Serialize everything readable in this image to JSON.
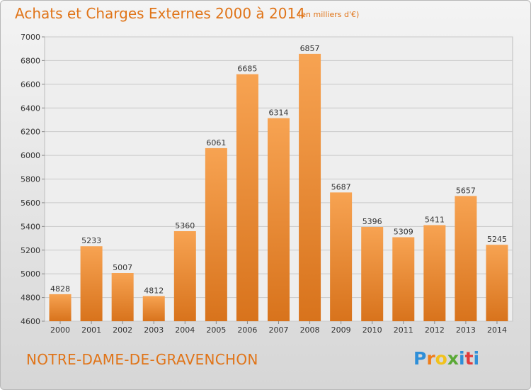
{
  "title": "Achats et Charges Externes 2000 à 2014",
  "subtitle": "(en milliers d'€)",
  "location": "NOTRE-DAME-DE-GRAVENCHON",
  "logo": {
    "letters": [
      "P",
      "r",
      "o",
      "x",
      "i",
      "t",
      "i"
    ],
    "colors": [
      "#2f8fd8",
      "#ee7d1a",
      "#f2c21b",
      "#5aa935",
      "#2f8fd8",
      "#e23b3b",
      "#2f8fd8"
    ]
  },
  "colors": {
    "bar_light": "#f7a352",
    "bar_dark": "#d8731c",
    "grid": "#c9c9c9",
    "text": "#333333"
  },
  "chart_data": {
    "type": "bar",
    "title": "Achats et Charges Externes 2000 à 2014",
    "subtitle": "(en milliers d'€)",
    "categories": [
      "2000",
      "2001",
      "2002",
      "2003",
      "2004",
      "2005",
      "2006",
      "2007",
      "2008",
      "2009",
      "2010",
      "2011",
      "2012",
      "2013",
      "2014"
    ],
    "values": [
      4828,
      5233,
      5007,
      4812,
      5360,
      6061,
      6685,
      6314,
      6857,
      5687,
      5396,
      5309,
      5411,
      5657,
      5245
    ],
    "value_labels": [
      "4828",
      "5233",
      "5007",
      "4812",
      "5360",
      "6061",
      "6685",
      "6314",
      "6857",
      "5687",
      "5396",
      "5309",
      "5411",
      "5657",
      "5245"
    ],
    "yticks": [
      "4600",
      "4800",
      "5000",
      "5200",
      "5400",
      "5600",
      "5800",
      "6000",
      "6200",
      "6400",
      "6600",
      "6800",
      "7000"
    ],
    "ylim": [
      4600,
      7000
    ],
    "grid": true,
    "legend": "none"
  }
}
